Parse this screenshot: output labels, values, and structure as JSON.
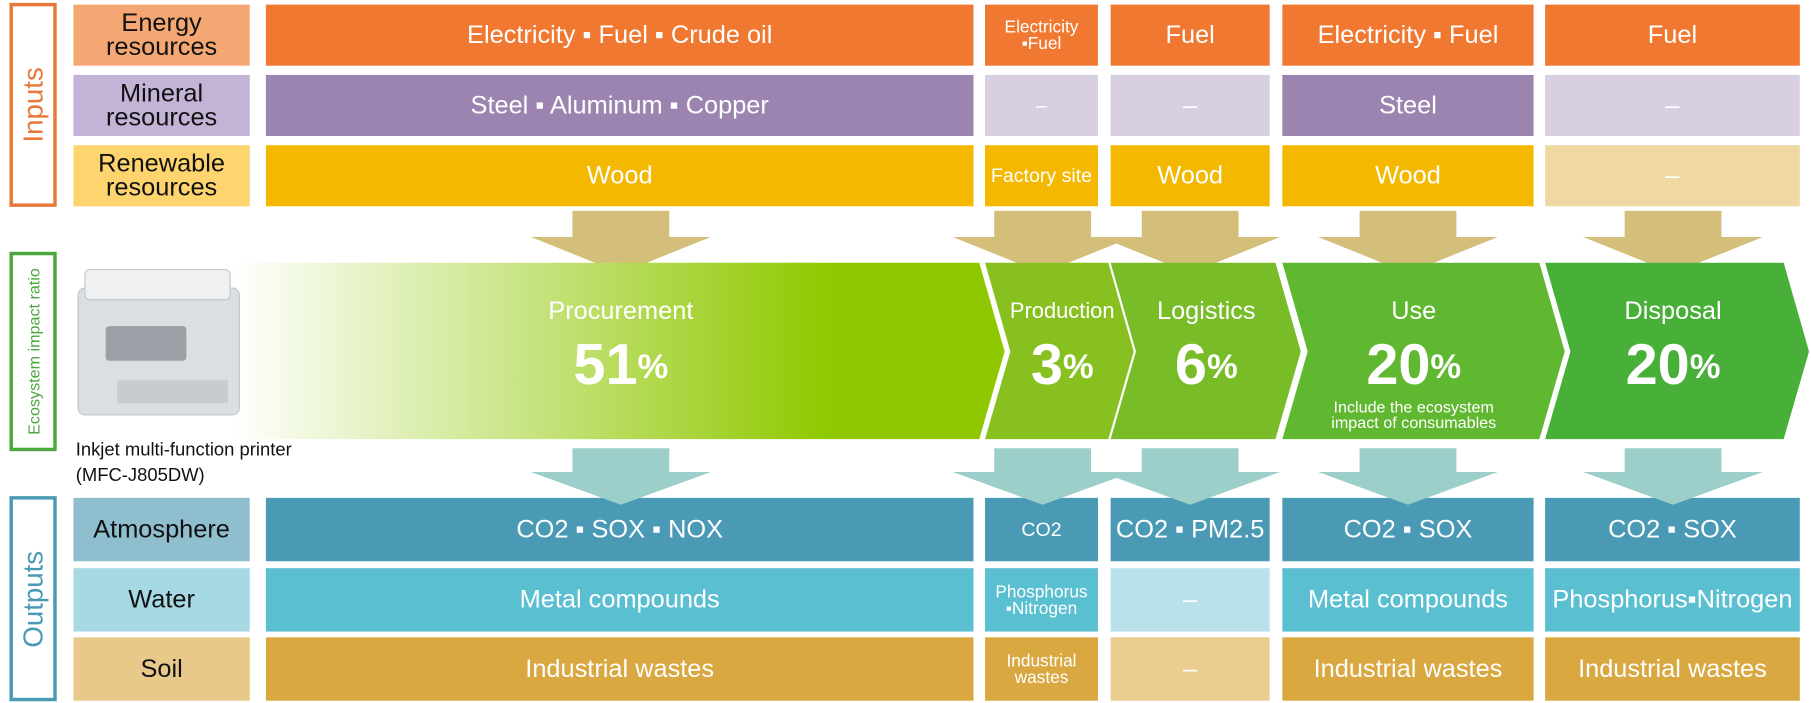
{
  "sections": {
    "inputs": "Inputs",
    "ecosystem": "Ecosystem impact ratio",
    "outputs": "Outputs"
  },
  "percent_sign": "%",
  "product": {
    "lines": [
      "Inkjet multi-function printer",
      "(MFC-J805DW)"
    ]
  },
  "input_rows": [
    {
      "label": [
        "Energy",
        "resources"
      ],
      "label_color": "#f4a772",
      "color": "#f07830",
      "muted_color": "#f8c9a8",
      "cells": [
        {
          "lines": [
            "Electricity ▪ Fuel ▪ Crude oil"
          ]
        },
        {
          "lines": [
            "Electricity",
            "▪Fuel"
          ]
        },
        {
          "lines": [
            "Fuel"
          ]
        },
        {
          "lines": [
            "Electricity ▪ Fuel"
          ]
        },
        {
          "lines": [
            "Fuel"
          ]
        }
      ]
    },
    {
      "label": [
        "Mineral",
        "resources"
      ],
      "label_color": "#c3b3d6",
      "color": "#9b85b0",
      "muted_color": "#d8cfe2",
      "cells": [
        {
          "lines": [
            "Steel ▪ Aluminum ▪ Copper"
          ]
        },
        {
          "lines": [
            "–"
          ],
          "muted": true
        },
        {
          "lines": [
            "–"
          ],
          "muted": true
        },
        {
          "lines": [
            "Steel"
          ]
        },
        {
          "lines": [
            "–"
          ],
          "muted": true
        }
      ]
    },
    {
      "label": [
        "Renewable",
        "resources"
      ],
      "label_color": "#fdd46e",
      "color": "#f5b800",
      "muted_color": "#efd8a2",
      "cells": [
        {
          "lines": [
            "Wood"
          ]
        },
        {
          "lines": [
            "Factory site"
          ]
        },
        {
          "lines": [
            "Wood"
          ]
        },
        {
          "lines": [
            "Wood"
          ]
        },
        {
          "lines": [
            "–"
          ],
          "muted": true
        }
      ]
    }
  ],
  "stages": [
    {
      "name": "Procurement",
      "value": "51",
      "color": "#8fc800"
    },
    {
      "name": "Production",
      "value": "3",
      "color": "#88c020"
    },
    {
      "name": "Logistics",
      "value": "6",
      "color": "#78bc28"
    },
    {
      "name": "Use",
      "value": "20",
      "color": "#60b830",
      "note": [
        "Include the ecosystem",
        "impact of consumables"
      ]
    },
    {
      "name": "Disposal",
      "value": "20",
      "color": "#48b038"
    }
  ],
  "output_rows": [
    {
      "label": [
        "Atmosphere"
      ],
      "label_color": "#8fbfcf",
      "color": "#4a9ab5",
      "muted_color": "#b3d6e2",
      "cells": [
        {
          "lines": [
            "CO2 ▪ SOX ▪ NOX"
          ]
        },
        {
          "lines": [
            "CO2"
          ]
        },
        {
          "lines": [
            "CO2 ▪ PM2.5"
          ]
        },
        {
          "lines": [
            "CO2 ▪ SOX"
          ]
        },
        {
          "lines": [
            "CO2 ▪ SOX"
          ]
        }
      ]
    },
    {
      "label": [
        "Water"
      ],
      "label_color": "#a6d9e3",
      "color": "#5bbfd2",
      "muted_color": "#b8e1ea",
      "cells": [
        {
          "lines": [
            "Metal compounds"
          ]
        },
        {
          "lines": [
            "Phosphorus",
            "▪Nitrogen"
          ]
        },
        {
          "lines": [
            "–"
          ],
          "muted": true
        },
        {
          "lines": [
            "Metal compounds"
          ]
        },
        {
          "lines": [
            "Phosphorus▪Nitrogen"
          ]
        }
      ]
    },
    {
      "label": [
        "Soil"
      ],
      "label_color": "#e8c98a",
      "color": "#d9a840",
      "muted_color": "#ebcd90",
      "cells": [
        {
          "lines": [
            "Industrial wastes"
          ]
        },
        {
          "lines": [
            "Industrial",
            "wastes"
          ]
        },
        {
          "lines": [
            "–"
          ],
          "muted": true
        },
        {
          "lines": [
            "Industrial wastes"
          ]
        },
        {
          "lines": [
            "Industrial wastes"
          ]
        }
      ]
    }
  ]
}
